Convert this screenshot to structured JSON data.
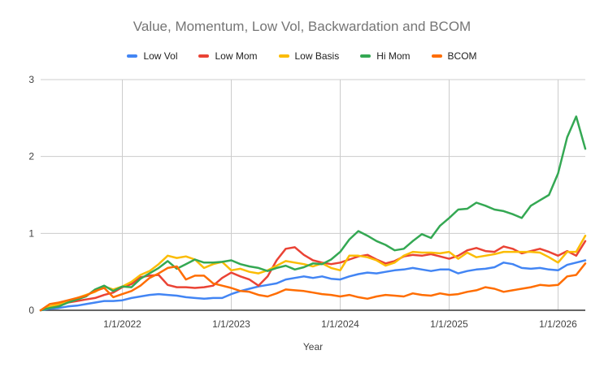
{
  "title": "Value, Momentum, Low Vol, Backwardation and BCOM",
  "style": {
    "background": "#ffffff",
    "title_color": "#757575",
    "tick_label_color": "#424242",
    "legend_text_color": "#212121",
    "grid_color": "#cccccc",
    "axis_color": "#333333"
  },
  "chart_data": {
    "type": "line",
    "title": "Value, Momentum, Low Vol, Backwardation and BCOM",
    "xlabel": "Year",
    "ylabel": "",
    "ylim": [
      0,
      3
    ],
    "y_ticks": [
      0,
      1,
      2,
      3
    ],
    "grid": true,
    "legend_position": "top",
    "x_points": 61,
    "x_range_note": "monthly points, Apr 2021 through Apr 2026",
    "x_tick_labels": [
      "1/1/2022",
      "1/1/2023",
      "1/1/2024",
      "1/1/2025",
      "1/1/2026"
    ],
    "x_tick_month_index": [
      9,
      21,
      33,
      45,
      57
    ],
    "series": [
      {
        "name": "Low Vol",
        "color": "#4285F4",
        "values": [
          0.0,
          0.02,
          0.03,
          0.05,
          0.06,
          0.08,
          0.1,
          0.12,
          0.12,
          0.13,
          0.16,
          0.18,
          0.2,
          0.21,
          0.2,
          0.19,
          0.17,
          0.16,
          0.15,
          0.16,
          0.16,
          0.21,
          0.25,
          0.28,
          0.31,
          0.33,
          0.35,
          0.4,
          0.42,
          0.44,
          0.42,
          0.44,
          0.41,
          0.4,
          0.44,
          0.47,
          0.49,
          0.48,
          0.5,
          0.52,
          0.53,
          0.55,
          0.53,
          0.51,
          0.53,
          0.53,
          0.48,
          0.51,
          0.53,
          0.54,
          0.56,
          0.62,
          0.6,
          0.55,
          0.54,
          0.55,
          0.53,
          0.52,
          0.59,
          0.62,
          0.65
        ]
      },
      {
        "name": "Low Mom",
        "color": "#EA4335",
        "values": [
          0.0,
          0.04,
          0.07,
          0.1,
          0.12,
          0.14,
          0.16,
          0.2,
          0.23,
          0.3,
          0.34,
          0.43,
          0.45,
          0.46,
          0.33,
          0.3,
          0.3,
          0.29,
          0.3,
          0.32,
          0.42,
          0.49,
          0.44,
          0.4,
          0.32,
          0.44,
          0.65,
          0.8,
          0.82,
          0.72,
          0.65,
          0.62,
          0.6,
          0.62,
          0.66,
          0.7,
          0.72,
          0.66,
          0.61,
          0.64,
          0.7,
          0.72,
          0.71,
          0.73,
          0.7,
          0.67,
          0.71,
          0.78,
          0.81,
          0.77,
          0.76,
          0.83,
          0.8,
          0.74,
          0.77,
          0.8,
          0.76,
          0.71,
          0.77,
          0.71,
          0.9
        ]
      },
      {
        "name": "Low Basis",
        "color": "#FBBC04",
        "values": [
          0.0,
          0.05,
          0.08,
          0.12,
          0.16,
          0.2,
          0.24,
          0.31,
          0.27,
          0.31,
          0.37,
          0.46,
          0.51,
          0.6,
          0.71,
          0.68,
          0.7,
          0.66,
          0.55,
          0.6,
          0.63,
          0.52,
          0.54,
          0.5,
          0.48,
          0.52,
          0.58,
          0.64,
          0.62,
          0.6,
          0.57,
          0.61,
          0.55,
          0.52,
          0.71,
          0.71,
          0.69,
          0.65,
          0.58,
          0.62,
          0.71,
          0.76,
          0.75,
          0.75,
          0.74,
          0.76,
          0.67,
          0.75,
          0.69,
          0.71,
          0.73,
          0.76,
          0.76,
          0.76,
          0.76,
          0.75,
          0.69,
          0.62,
          0.76,
          0.76,
          0.97
        ]
      },
      {
        "name": "Hi Mom",
        "color": "#34A853",
        "values": [
          0.0,
          0.03,
          0.05,
          0.1,
          0.14,
          0.18,
          0.27,
          0.32,
          0.25,
          0.31,
          0.3,
          0.41,
          0.48,
          0.55,
          0.64,
          0.54,
          0.6,
          0.66,
          0.62,
          0.62,
          0.63,
          0.65,
          0.6,
          0.57,
          0.55,
          0.51,
          0.55,
          0.58,
          0.53,
          0.56,
          0.61,
          0.6,
          0.66,
          0.76,
          0.92,
          1.03,
          0.97,
          0.9,
          0.85,
          0.78,
          0.8,
          0.9,
          0.99,
          0.94,
          1.1,
          1.2,
          1.31,
          1.32,
          1.4,
          1.36,
          1.31,
          1.29,
          1.25,
          1.2,
          1.36,
          1.43,
          1.5,
          1.78,
          2.25,
          2.52,
          2.1
        ]
      },
      {
        "name": "BCOM",
        "color": "#FF6D01",
        "values": [
          0.0,
          0.08,
          0.1,
          0.13,
          0.16,
          0.19,
          0.25,
          0.29,
          0.17,
          0.21,
          0.25,
          0.32,
          0.42,
          0.48,
          0.55,
          0.57,
          0.4,
          0.45,
          0.45,
          0.35,
          0.32,
          0.29,
          0.25,
          0.24,
          0.2,
          0.18,
          0.22,
          0.27,
          0.26,
          0.25,
          0.23,
          0.21,
          0.2,
          0.18,
          0.2,
          0.17,
          0.15,
          0.18,
          0.2,
          0.19,
          0.18,
          0.22,
          0.2,
          0.19,
          0.22,
          0.2,
          0.21,
          0.24,
          0.26,
          0.3,
          0.28,
          0.24,
          0.26,
          0.28,
          0.3,
          0.33,
          0.32,
          0.33,
          0.44,
          0.46,
          0.61
        ]
      }
    ]
  }
}
